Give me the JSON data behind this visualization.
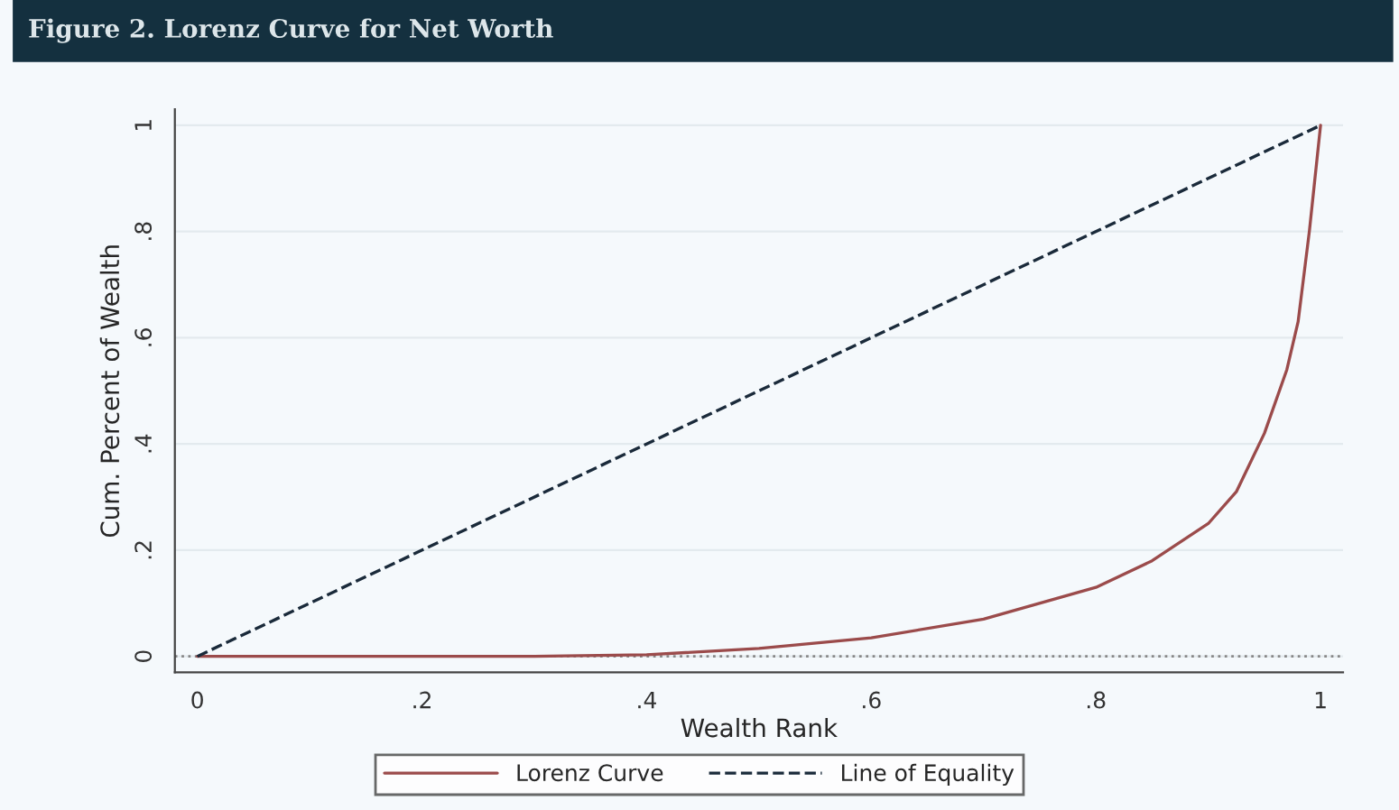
{
  "chart_data": {
    "type": "line",
    "title": "Figure 2. Lorenz Curve for Net Worth",
    "xlabel": "Wealth Rank",
    "ylabel": "Cum. Percent of Wealth",
    "series": [
      {
        "name": "Lorenz Curve",
        "color": "#9b4b4b",
        "line_style": "solid",
        "x": [
          0,
          0.1,
          0.2,
          0.3,
          0.4,
          0.5,
          0.6,
          0.7,
          0.8,
          0.85,
          0.9,
          0.925,
          0.95,
          0.97,
          0.98,
          0.99,
          0.995,
          1
        ],
        "values": [
          0,
          0,
          0,
          0,
          0.003,
          0.015,
          0.035,
          0.07,
          0.13,
          0.18,
          0.25,
          0.31,
          0.42,
          0.54,
          0.63,
          0.8,
          0.9,
          1
        ]
      },
      {
        "name": "Line of Equality",
        "color": "#1a2a3a",
        "line_style": "dashed",
        "x": [
          0,
          1
        ],
        "values": [
          0,
          1
        ]
      }
    ],
    "ref_lines": [
      {
        "axis": "y",
        "value": 0,
        "color": "#888888",
        "line_style": "dotted"
      }
    ],
    "xlim": [
      -0.02,
      1.02
    ],
    "ylim": [
      -0.03,
      1.03
    ],
    "xticks": [
      0,
      {
        "value": 0.2,
        "label": ".2"
      },
      {
        "value": 0.4,
        "label": ".4"
      },
      {
        "value": 0.6,
        "label": ".6"
      },
      {
        "value": 0.8,
        "label": ".8"
      },
      1
    ],
    "yticks": [
      0,
      {
        "value": 0.2,
        "label": ".2"
      },
      {
        "value": 0.4,
        "label": ".4"
      },
      {
        "value": 0.6,
        "label": ".6"
      },
      {
        "value": 0.8,
        "label": ".8"
      },
      1
    ],
    "grid": "y",
    "legend": "bottom"
  }
}
